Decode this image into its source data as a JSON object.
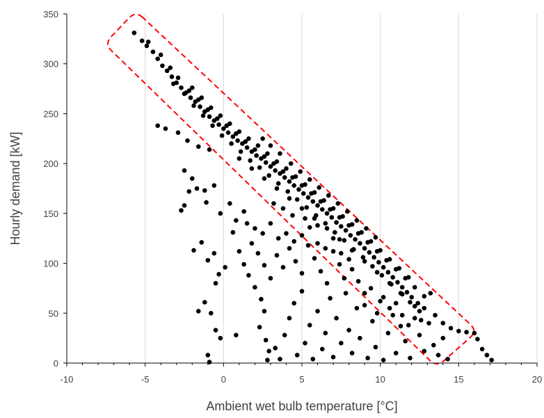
{
  "chart_data": {
    "type": "scatter",
    "xlabel": "Ambient wet bulb temperature [°C]",
    "ylabel": "Hourly demand [kW]",
    "xlim": [
      -10,
      20
    ],
    "ylim": [
      0,
      350
    ],
    "x_ticks": [
      -10,
      -5,
      0,
      5,
      10,
      15,
      20
    ],
    "y_ticks": [
      0,
      50,
      100,
      150,
      200,
      250,
      300,
      350
    ],
    "grid": {
      "vertical": true,
      "horizontal": false
    },
    "marker_color": "#000000",
    "gridline_color": "#d9d9d9",
    "axis_color": "#000000",
    "annotations": [
      {
        "type": "dashed-rounded-rectangle",
        "color": "#ff0000",
        "corners": [
          [
            -5.6,
            353
          ],
          [
            -7.6,
            320
          ],
          [
            13.6,
            -4
          ],
          [
            16.2,
            32
          ]
        ]
      }
    ],
    "series": [
      {
        "points": [
          [
            -5.7,
            331
          ],
          [
            -5.2,
            323
          ],
          [
            -4.9,
            318
          ],
          [
            -4.5,
            312
          ],
          [
            -4.2,
            305
          ],
          [
            -3.9,
            298
          ],
          [
            -3.6,
            293
          ],
          [
            -3.3,
            287
          ],
          [
            -3.0,
            281
          ],
          [
            -2.7,
            276
          ],
          [
            -2.4,
            271
          ],
          [
            -2.1,
            266
          ],
          [
            -1.8,
            262
          ],
          [
            -1.5,
            257
          ],
          [
            -1.2,
            252
          ],
          [
            -0.9,
            247
          ],
          [
            -0.6,
            243
          ],
          [
            -0.3,
            239
          ],
          [
            0.0,
            235
          ],
          [
            0.3,
            231
          ],
          [
            0.6,
            227
          ],
          [
            0.9,
            223
          ],
          [
            1.2,
            220
          ],
          [
            1.5,
            216
          ],
          [
            1.8,
            212
          ],
          [
            2.1,
            208
          ],
          [
            2.4,
            205
          ],
          [
            2.7,
            201
          ],
          [
            3.0,
            197
          ],
          [
            3.3,
            193
          ],
          [
            3.6,
            190
          ],
          [
            3.9,
            186
          ],
          [
            4.2,
            182
          ],
          [
            4.5,
            178
          ],
          [
            4.8,
            174
          ],
          [
            5.1,
            170
          ],
          [
            5.4,
            166
          ],
          [
            5.7,
            162
          ],
          [
            6.0,
            158
          ],
          [
            6.3,
            154
          ],
          [
            6.6,
            150
          ],
          [
            6.9,
            146
          ],
          [
            7.2,
            141
          ],
          [
            7.5,
            137
          ],
          [
            7.8,
            133
          ],
          [
            8.1,
            128
          ],
          [
            8.4,
            124
          ],
          [
            8.7,
            120
          ],
          [
            9.0,
            115
          ],
          [
            9.3,
            111
          ],
          [
            9.6,
            106
          ],
          [
            9.9,
            101
          ],
          [
            10.2,
            96
          ],
          [
            10.5,
            91
          ],
          [
            10.8,
            86
          ],
          [
            11.1,
            81
          ],
          [
            11.4,
            76
          ],
          [
            11.7,
            71
          ],
          [
            12.0,
            66
          ],
          [
            12.4,
            60
          ],
          [
            12.8,
            55
          ],
          [
            13.2,
            70
          ],
          [
            13.5,
            48
          ],
          [
            14.0,
            40
          ],
          [
            14.5,
            35
          ],
          [
            15.0,
            32
          ],
          [
            15.5,
            31
          ],
          [
            16.0,
            30
          ],
          [
            16.2,
            24
          ],
          [
            16.5,
            14
          ],
          [
            16.8,
            8
          ],
          [
            17.1,
            3
          ],
          [
            -4.8,
            322
          ],
          [
            -4.0,
            309
          ],
          [
            -3.4,
            296
          ],
          [
            -2.9,
            286
          ],
          [
            -2.2,
            273
          ],
          [
            -1.6,
            264
          ],
          [
            -1.0,
            254
          ],
          [
            -0.4,
            245
          ],
          [
            0.2,
            238
          ],
          [
            0.8,
            230
          ],
          [
            1.4,
            222
          ],
          [
            2.0,
            214
          ],
          [
            2.6,
            207
          ],
          [
            3.2,
            200
          ],
          [
            3.8,
            192
          ],
          [
            4.4,
            186
          ],
          [
            5.0,
            178
          ],
          [
            5.6,
            170
          ],
          [
            6.2,
            162
          ],
          [
            6.8,
            154
          ],
          [
            7.4,
            146
          ],
          [
            8.0,
            138
          ],
          [
            8.6,
            130
          ],
          [
            9.2,
            121
          ],
          [
            9.8,
            112
          ],
          [
            10.4,
            103
          ],
          [
            11.0,
            94
          ],
          [
            11.6,
            85
          ],
          [
            12.2,
            76
          ],
          [
            12.8,
            67
          ],
          [
            -3.2,
            280
          ],
          [
            -2.5,
            270
          ],
          [
            -1.9,
            258
          ],
          [
            -1.3,
            248
          ],
          [
            -0.7,
            238
          ],
          [
            -0.1,
            228
          ],
          [
            0.5,
            220
          ],
          [
            1.1,
            212
          ],
          [
            1.7,
            203
          ],
          [
            2.3,
            196
          ],
          [
            2.9,
            188
          ],
          [
            3.5,
            180
          ],
          [
            4.1,
            172
          ],
          [
            4.7,
            164
          ],
          [
            5.3,
            156
          ],
          [
            5.9,
            148
          ],
          [
            6.5,
            140
          ],
          [
            7.1,
            131
          ],
          [
            7.7,
            123
          ],
          [
            8.3,
            114
          ],
          [
            8.9,
            106
          ],
          [
            9.5,
            97
          ],
          [
            10.1,
            88
          ],
          [
            10.7,
            79
          ],
          [
            11.3,
            70
          ],
          [
            11.9,
            61
          ],
          [
            12.5,
            52
          ],
          [
            -2.0,
            276
          ],
          [
            -1.4,
            266
          ],
          [
            -0.8,
            256
          ],
          [
            -0.2,
            248
          ],
          [
            0.4,
            240
          ],
          [
            1.0,
            232
          ],
          [
            1.6,
            225
          ],
          [
            2.2,
            218
          ],
          [
            2.8,
            210
          ],
          [
            3.4,
            202
          ],
          [
            4.0,
            195
          ],
          [
            4.6,
            187
          ],
          [
            5.2,
            179
          ],
          [
            5.8,
            171
          ],
          [
            6.4,
            163
          ],
          [
            7.0,
            155
          ],
          [
            7.6,
            147
          ],
          [
            8.2,
            139
          ],
          [
            8.8,
            131
          ],
          [
            9.4,
            122
          ],
          [
            10.0,
            113
          ],
          [
            10.6,
            104
          ],
          [
            11.2,
            95
          ],
          [
            11.8,
            86
          ],
          [
            2.5,
            225
          ],
          [
            3.0,
            218
          ],
          [
            3.6,
            210
          ],
          [
            4.3,
            200
          ],
          [
            4.9,
            192
          ],
          [
            5.5,
            184
          ],
          [
            6.1,
            176
          ],
          [
            6.7,
            168
          ],
          [
            7.3,
            160
          ],
          [
            7.9,
            152
          ],
          [
            8.5,
            143
          ],
          [
            9.1,
            135
          ],
          [
            9.7,
            126
          ],
          [
            1.0,
            205
          ],
          [
            1.8,
            195
          ],
          [
            2.6,
            185
          ],
          [
            3.4,
            175
          ],
          [
            4.2,
            165
          ],
          [
            5.0,
            155
          ],
          [
            5.8,
            145
          ],
          [
            6.6,
            135
          ],
          [
            7.4,
            124
          ],
          [
            8.2,
            113
          ],
          [
            9.0,
            102
          ],
          [
            9.8,
            91
          ],
          [
            10.6,
            80
          ],
          [
            11.4,
            69
          ],
          [
            -4.2,
            238
          ],
          [
            -3.7,
            235
          ],
          [
            -2.9,
            231
          ],
          [
            -2.3,
            223
          ],
          [
            -1.6,
            217
          ],
          [
            -0.9,
            214
          ],
          [
            -2.5,
            193
          ],
          [
            -2.0,
            185
          ],
          [
            -1.7,
            175
          ],
          [
            -2.2,
            172
          ],
          [
            -1.2,
            173
          ],
          [
            -0.6,
            178
          ],
          [
            -2.7,
            153
          ],
          [
            -2.5,
            158
          ],
          [
            -1.1,
            161
          ],
          [
            -0.2,
            150
          ],
          [
            0.4,
            160
          ],
          [
            1.3,
            152
          ],
          [
            0.8,
            143
          ],
          [
            -1.9,
            113
          ],
          [
            -1.4,
            121
          ],
          [
            -1.0,
            103
          ],
          [
            -0.6,
            110
          ],
          [
            -0.3,
            89
          ],
          [
            0.1,
            96
          ],
          [
            -0.5,
            80
          ],
          [
            -1.2,
            61
          ],
          [
            -0.8,
            50
          ],
          [
            -1.6,
            52
          ],
          [
            -0.5,
            33
          ],
          [
            -0.2,
            25
          ],
          [
            0.8,
            28
          ],
          [
            -1.0,
            8
          ],
          [
            -0.9,
            1
          ],
          [
            0.6,
            131
          ],
          [
            1.0,
            112
          ],
          [
            1.3,
            99
          ],
          [
            1.6,
            88
          ],
          [
            2.0,
            76
          ],
          [
            2.4,
            64
          ],
          [
            2.6,
            52
          ],
          [
            2.3,
            36
          ],
          [
            2.7,
            23
          ],
          [
            2.9,
            12
          ],
          [
            2.8,
            3
          ],
          [
            3.3,
            15
          ],
          [
            3.6,
            4
          ],
          [
            3.9,
            28
          ],
          [
            4.2,
            45
          ],
          [
            4.5,
            60
          ],
          [
            4.7,
            8
          ],
          [
            5.0,
            72
          ],
          [
            5.2,
            20
          ],
          [
            5.5,
            38
          ],
          [
            5.7,
            4
          ],
          [
            6.0,
            52
          ],
          [
            6.3,
            14
          ],
          [
            6.5,
            30
          ],
          [
            6.8,
            65
          ],
          [
            7.0,
            6
          ],
          [
            7.2,
            45
          ],
          [
            7.5,
            20
          ],
          [
            7.7,
            85
          ],
          [
            8.0,
            33
          ],
          [
            8.2,
            10
          ],
          [
            8.5,
            55
          ],
          [
            8.7,
            25
          ],
          [
            9.0,
            70
          ],
          [
            9.2,
            5
          ],
          [
            9.5,
            42
          ],
          [
            9.7,
            16
          ],
          [
            10.0,
            62
          ],
          [
            10.2,
            3
          ],
          [
            10.5,
            30
          ],
          [
            10.8,
            48
          ],
          [
            11.0,
            10
          ],
          [
            11.3,
            37
          ],
          [
            11.6,
            22
          ],
          [
            11.9,
            5
          ],
          [
            12.2,
            45
          ],
          [
            12.5,
            28
          ],
          [
            12.8,
            12
          ],
          [
            13.1,
            40
          ],
          [
            13.4,
            18
          ],
          [
            13.7,
            8
          ],
          [
            14.0,
            25
          ],
          [
            14.3,
            4
          ],
          [
            1.8,
            120
          ],
          [
            2.2,
            110
          ],
          [
            2.6,
            98
          ],
          [
            3.0,
            85
          ],
          [
            3.4,
            108
          ],
          [
            3.8,
            96
          ],
          [
            4.2,
            115
          ],
          [
            4.6,
            102
          ],
          [
            5.0,
            90
          ],
          [
            5.4,
            118
          ],
          [
            5.8,
            105
          ],
          [
            6.2,
            92
          ],
          [
            6.6,
            80
          ],
          [
            7.0,
            112
          ],
          [
            7.4,
            99
          ],
          [
            7.8,
            70
          ],
          [
            8.2,
            94
          ],
          [
            8.6,
            82
          ],
          [
            9.0,
            58
          ],
          [
            9.4,
            75
          ],
          [
            9.8,
            50
          ],
          [
            10.2,
            66
          ],
          [
            10.6,
            55
          ],
          [
            11.0,
            60
          ],
          [
            11.4,
            48
          ],
          [
            11.8,
            38
          ],
          [
            12.2,
            57
          ],
          [
            12.6,
            43
          ],
          [
            1.5,
            140
          ],
          [
            2.0,
            135
          ],
          [
            2.5,
            130
          ],
          [
            3.0,
            140
          ],
          [
            3.5,
            125
          ],
          [
            4.0,
            130
          ],
          [
            4.5,
            122
          ],
          [
            5.0,
            128
          ],
          [
            5.5,
            136
          ],
          [
            6.0,
            120
          ],
          [
            6.5,
            115
          ],
          [
            7.0,
            125
          ],
          [
            7.5,
            110
          ],
          [
            8.0,
            104
          ],
          [
            3.2,
            160
          ],
          [
            3.8,
            155
          ],
          [
            4.4,
            148
          ],
          [
            5.2,
            145
          ],
          [
            6.0,
            138
          ]
        ]
      }
    ]
  }
}
